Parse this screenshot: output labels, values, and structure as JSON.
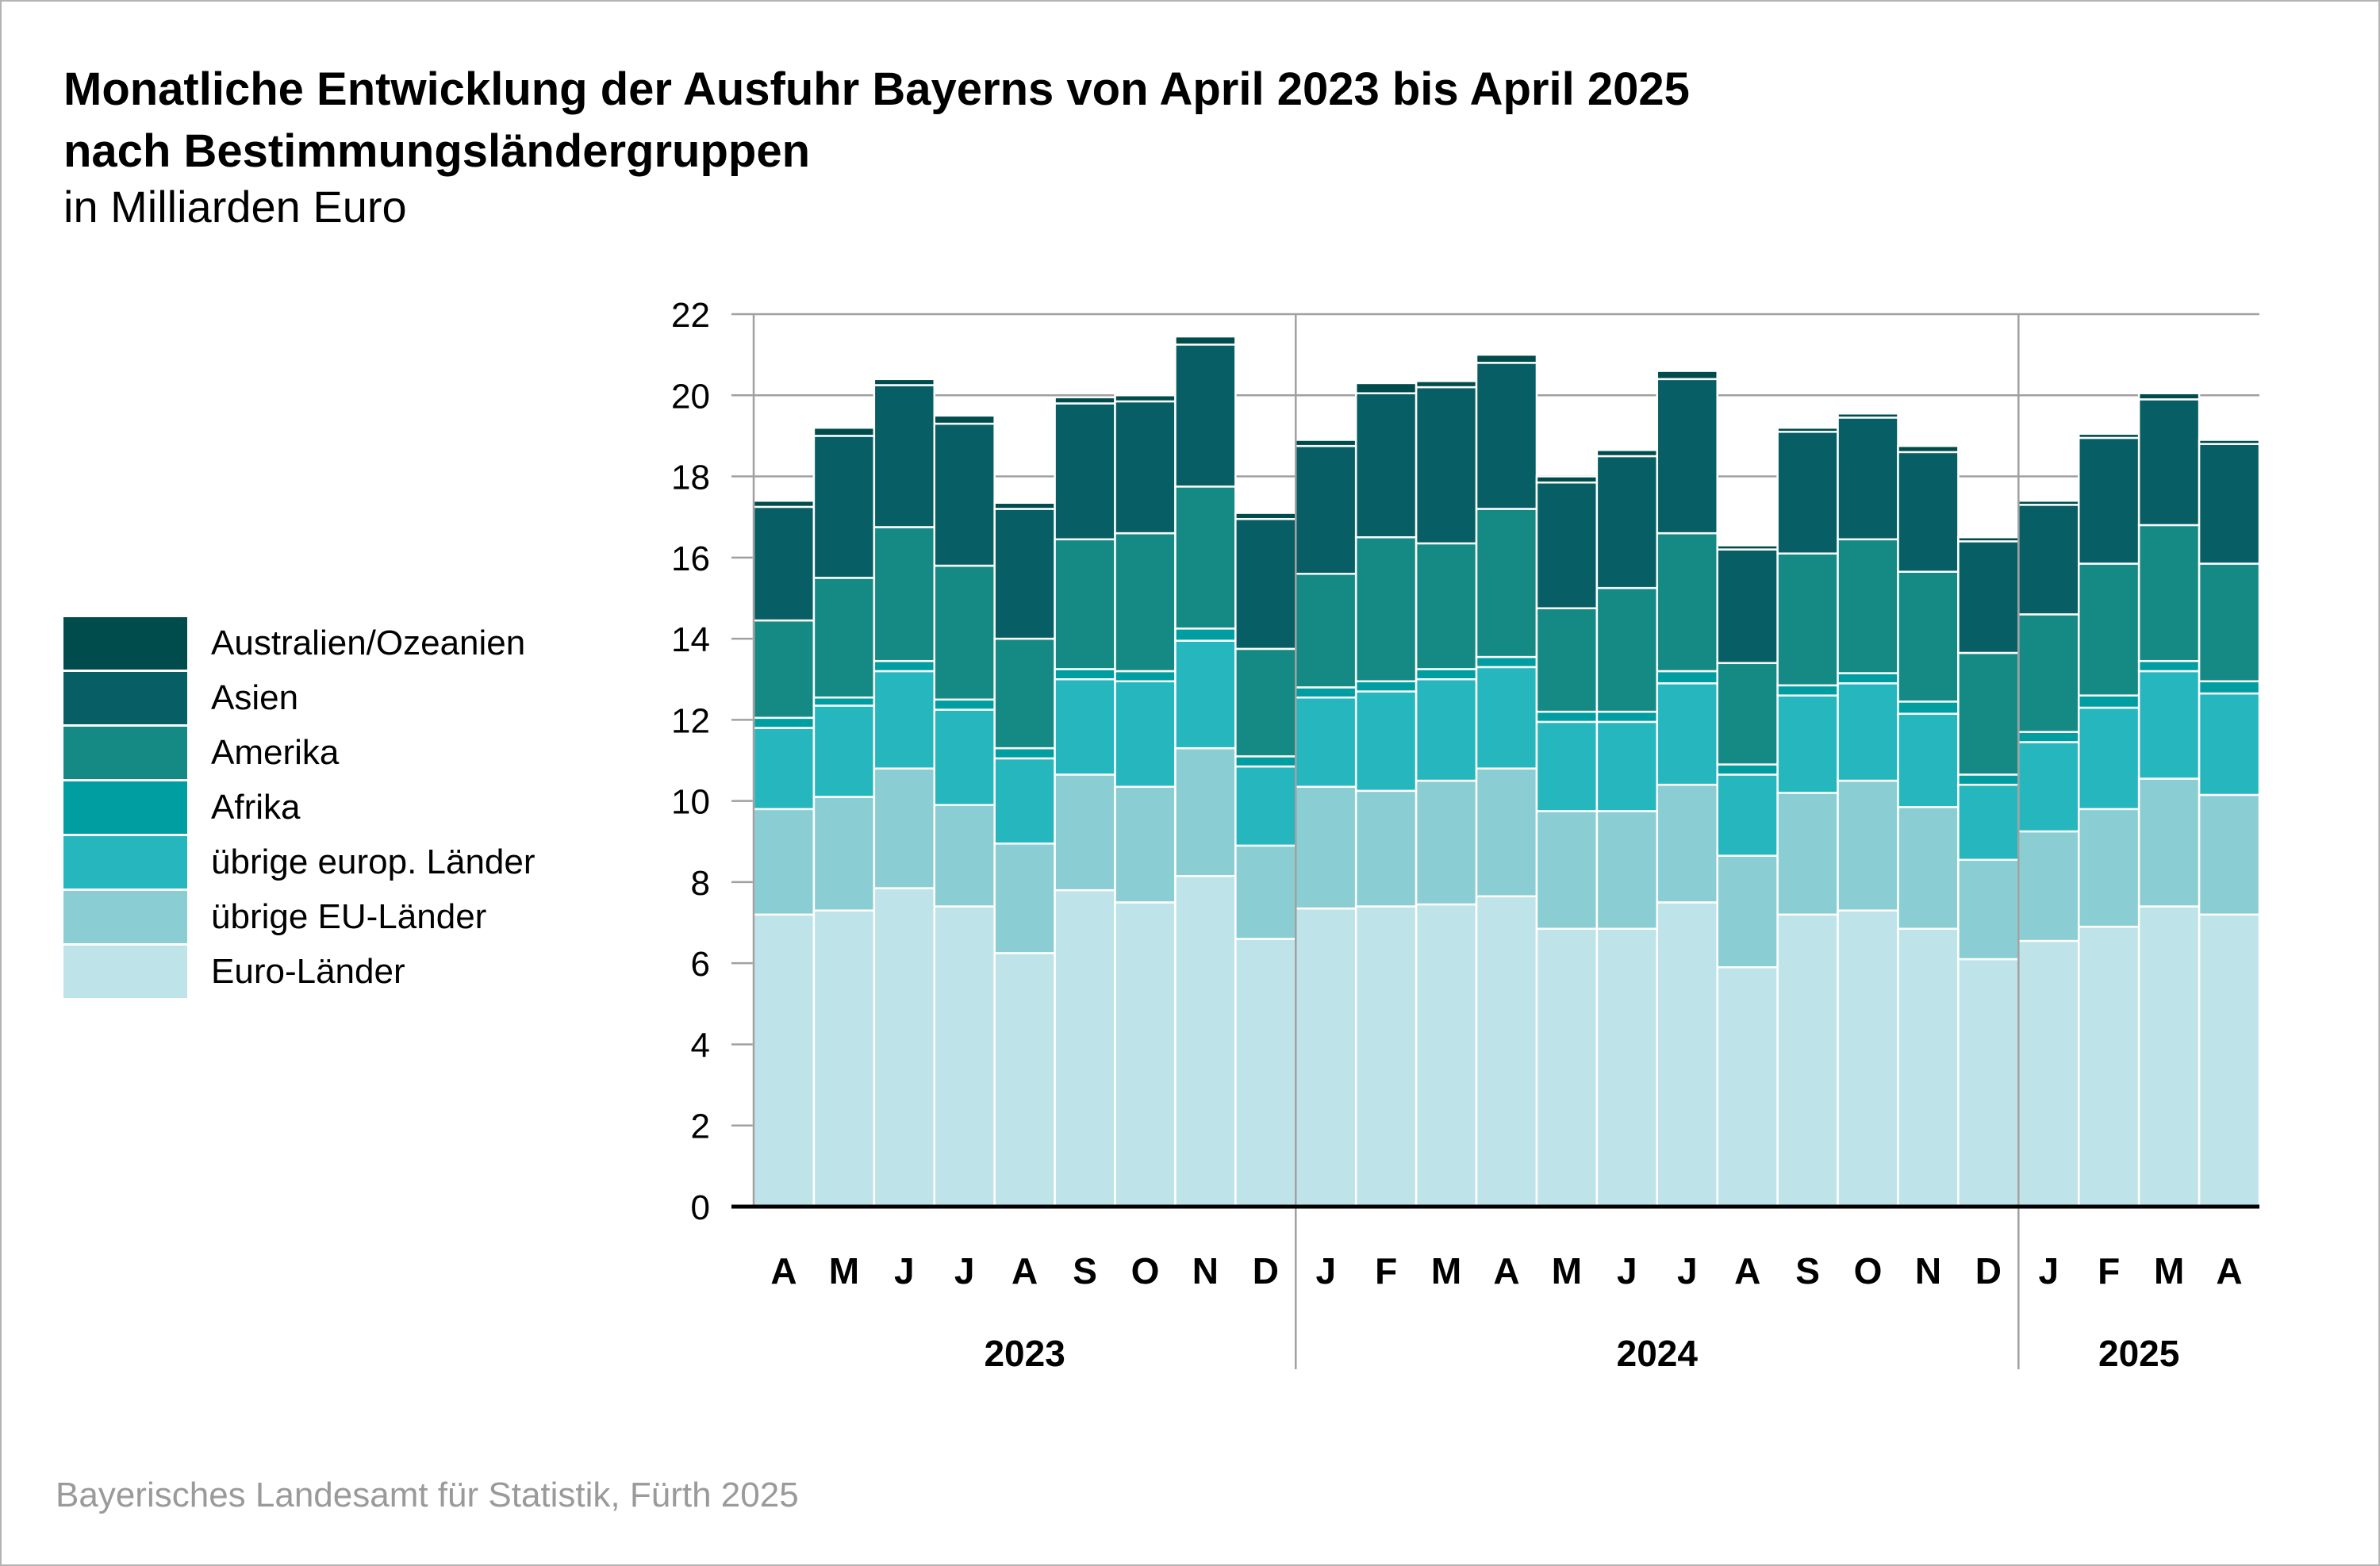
{
  "title_lines": [
    "Monatliche Entwicklung der Ausfuhr Bayerns von April 2023 bis April 2025",
    "nach Bestimmungsländergruppen"
  ],
  "subtitle": "in Milliarden Euro",
  "source": "Bayerisches Landesamt für Statistik, Fürth 2025",
  "legend": [
    {
      "label": "Australien/Ozeanien",
      "color": "#004c4c"
    },
    {
      "label": "Asien",
      "color": "#075f65"
    },
    {
      "label": "Amerika",
      "color": "#158a85"
    },
    {
      "label": "Afrika",
      "color": "#009ea1"
    },
    {
      "label": "übrige europ. Länder",
      "color": "#25b7bd"
    },
    {
      "label": "übrige EU-Länder",
      "color": "#8acdd3"
    },
    {
      "label": "Euro-Länder",
      "color": "#bee3e8"
    }
  ],
  "chart_data": {
    "type": "bar",
    "stacked": true,
    "categories": [
      "A",
      "M",
      "J",
      "J",
      "A",
      "S",
      "O",
      "N",
      "D",
      "J",
      "F",
      "M",
      "A",
      "M",
      "J",
      "J",
      "A",
      "S",
      "O",
      "N",
      "D",
      "J",
      "F",
      "M",
      "A"
    ],
    "year_groups": [
      {
        "label": "2023",
        "count": 9
      },
      {
        "label": "2024",
        "count": 12
      },
      {
        "label": "2025",
        "count": 4
      }
    ],
    "ylim": [
      0,
      22
    ],
    "yticks": [
      "0",
      "2",
      "4",
      "6",
      "8",
      "10",
      "12",
      "14",
      "16",
      "18",
      "20",
      "22"
    ],
    "grid": true,
    "series": [
      {
        "name": "Euro-Länder",
        "color": "#bee3e8",
        "values": [
          7.2,
          7.3,
          7.85,
          7.4,
          6.25,
          7.8,
          7.5,
          8.15,
          6.6,
          7.35,
          7.4,
          7.45,
          7.65,
          6.85,
          6.85,
          7.5,
          5.9,
          7.2,
          7.3,
          6.85,
          6.1,
          6.55,
          6.9,
          7.4,
          7.2
        ]
      },
      {
        "name": "übrige EU-Länder",
        "color": "#8acdd3",
        "values": [
          2.6,
          2.8,
          2.95,
          2.5,
          2.7,
          2.85,
          2.85,
          3.15,
          2.3,
          3.0,
          2.85,
          3.05,
          3.15,
          2.9,
          2.9,
          2.9,
          2.75,
          3.0,
          3.2,
          3.0,
          2.45,
          2.7,
          2.9,
          3.15,
          2.95
        ]
      },
      {
        "name": "übrige europ. Länder",
        "color": "#25b7bd",
        "values": [
          2.0,
          2.25,
          2.4,
          2.35,
          2.1,
          2.35,
          2.6,
          2.65,
          1.95,
          2.2,
          2.45,
          2.5,
          2.5,
          2.2,
          2.2,
          2.5,
          2.0,
          2.4,
          2.4,
          2.3,
          1.85,
          2.2,
          2.5,
          2.65,
          2.5
        ]
      },
      {
        "name": "Afrika",
        "color": "#009ea1",
        "values": [
          0.25,
          0.2,
          0.25,
          0.25,
          0.25,
          0.25,
          0.25,
          0.3,
          0.25,
          0.25,
          0.25,
          0.25,
          0.25,
          0.25,
          0.25,
          0.3,
          0.25,
          0.25,
          0.25,
          0.3,
          0.25,
          0.25,
          0.3,
          0.25,
          0.3
        ]
      },
      {
        "name": "Amerika",
        "color": "#158a85",
        "values": [
          2.4,
          2.95,
          3.3,
          3.3,
          2.7,
          3.2,
          3.4,
          3.5,
          2.65,
          2.8,
          3.55,
          3.1,
          3.65,
          2.55,
          3.05,
          3.4,
          2.5,
          3.25,
          3.3,
          3.2,
          3.0,
          2.9,
          3.25,
          3.35,
          2.9
        ]
      },
      {
        "name": "Asien",
        "color": "#075f65",
        "values": [
          2.8,
          3.5,
          3.5,
          3.5,
          3.2,
          3.35,
          3.25,
          3.5,
          3.2,
          3.15,
          3.55,
          3.85,
          3.6,
          3.1,
          3.25,
          3.8,
          2.8,
          3.0,
          3.0,
          2.95,
          2.75,
          2.7,
          3.1,
          3.1,
          2.95
        ]
      },
      {
        "name": "Australien/Ozeanien",
        "color": "#004c4c",
        "values": [
          0.15,
          0.2,
          0.15,
          0.2,
          0.15,
          0.15,
          0.15,
          0.2,
          0.15,
          0.15,
          0.25,
          0.15,
          0.2,
          0.15,
          0.15,
          0.2,
          0.1,
          0.1,
          0.1,
          0.15,
          0.1,
          0.1,
          0.1,
          0.15,
          0.1
        ]
      }
    ]
  }
}
